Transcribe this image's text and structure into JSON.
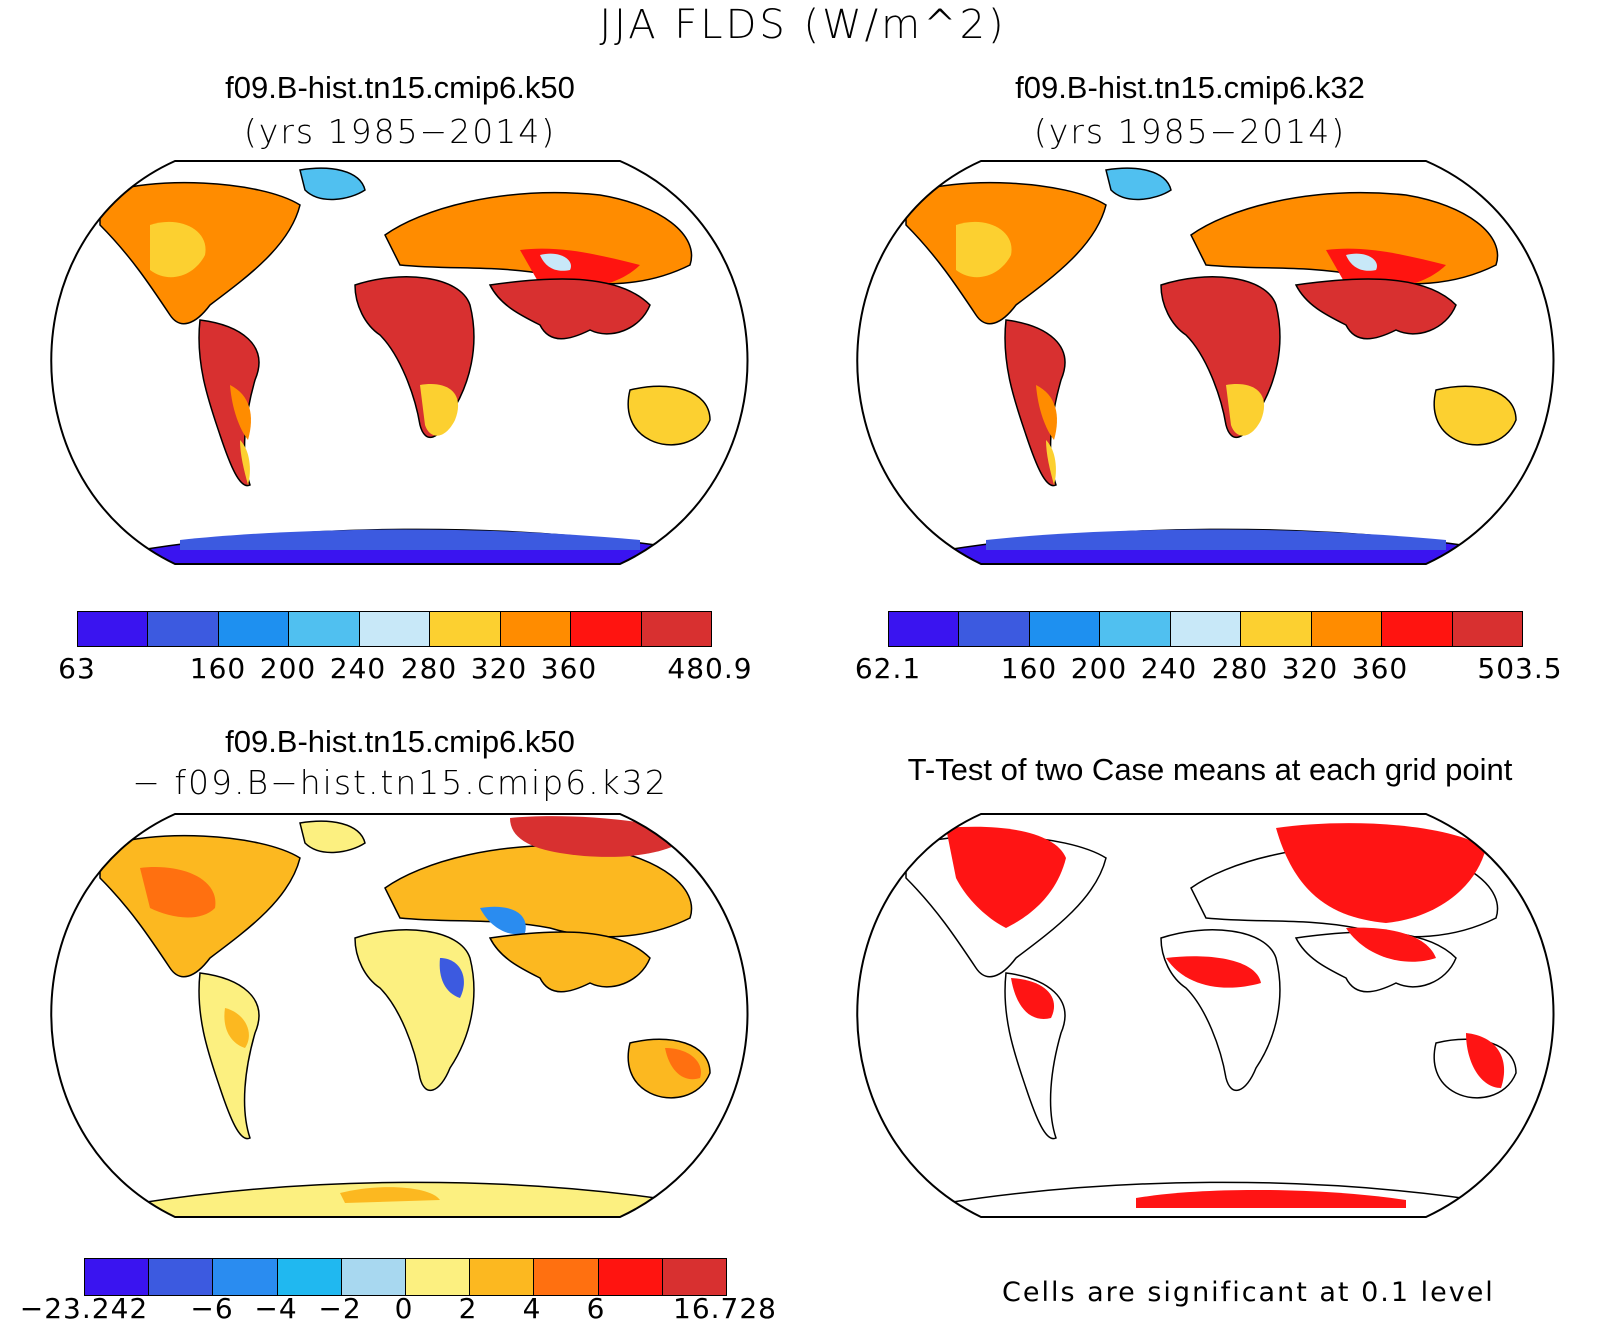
{
  "figure": {
    "title": "JJA FLDS (W/m^2)"
  },
  "panels": {
    "top_left": {
      "title": "f09.B-hist.tn15.cmip6.k50",
      "subtitle": "(yrs 1985−2014)",
      "colorbar": {
        "colors": [
          "#3a14f0",
          "#3c5ae0",
          "#1e90f0",
          "#50c0f0",
          "#c8e8f8",
          "#fcd030",
          "#ff8c00",
          "#ff1410",
          "#d83030"
        ],
        "labels": [
          "63",
          "160",
          "200",
          "240",
          "280",
          "320",
          "360",
          "480.9"
        ]
      }
    },
    "top_right": {
      "title": "f09.B-hist.tn15.cmip6.k32",
      "subtitle": "(yrs 1985−2014)",
      "colorbar": {
        "colors": [
          "#3a14f0",
          "#3c5ae0",
          "#1e90f0",
          "#50c0f0",
          "#c8e8f8",
          "#fcd030",
          "#ff8c00",
          "#ff1410",
          "#d83030"
        ],
        "labels": [
          "62.1",
          "160",
          "200",
          "240",
          "280",
          "320",
          "360",
          "503.5"
        ]
      }
    },
    "bottom_left": {
      "title": "f09.B-hist.tn15.cmip6.k50",
      "subtitle": "− f09.B−hist.tn15.cmip6.k32",
      "colorbar": {
        "colors": [
          "#3a14f0",
          "#3c5ae0",
          "#2a8cf0",
          "#20b8f0",
          "#a8d8f0",
          "#fcf080",
          "#fcb820",
          "#ff7010",
          "#ff1410",
          "#d83030"
        ],
        "labels": [
          "−23.242",
          "−6",
          "−4",
          "−2",
          "0",
          "2",
          "4",
          "6",
          "16.728"
        ]
      }
    },
    "bottom_right": {
      "title": "T-Test of two Case means at each grid point",
      "note": "Cells are significant at 0.1 level",
      "significant_color": "#ff1414"
    }
  }
}
